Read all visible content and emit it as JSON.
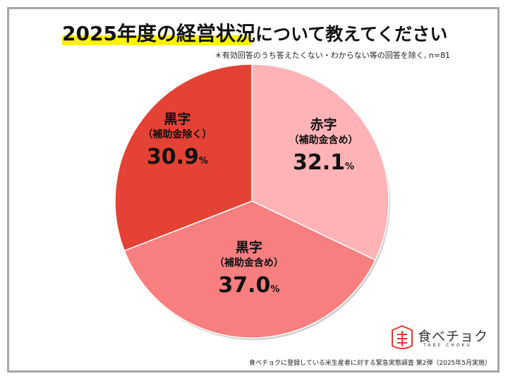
{
  "title": {
    "main": "2025年度の経営状況",
    "sub": "について教えてください"
  },
  "note": "＊有効回答のうち答えたくない・わからない等の回答を除く, n=81",
  "colors": {
    "red_profit_excl": "#e34234",
    "red_profit_incl": "#f77f7f",
    "deficit_incl": "#ffb3b6",
    "highlight": "#fff200",
    "frame": "#a6a6a6"
  },
  "chart_data": {
    "type": "pie",
    "title": "2025年度の経営状況について教えてください",
    "n": 81,
    "start_angle_deg": 0,
    "direction": "clockwise",
    "slices": [
      {
        "label": "赤字",
        "sublabel": "（補助金含め）",
        "value": 32.1,
        "display": "32.1",
        "unit": "%",
        "color": "#ffb3b6"
      },
      {
        "label": "黒字",
        "sublabel": "（補助金含め）",
        "value": 37.0,
        "display": "37.0",
        "unit": "%",
        "color": "#f77f7f"
      },
      {
        "label": "黒字",
        "sublabel": "（補助金除く）",
        "value": 30.9,
        "display": "30.9",
        "unit": "%",
        "color": "#e34234"
      }
    ]
  },
  "logo": {
    "text": "食べチョク",
    "sub": "TABE CHOKU",
    "icon": "tabechoku-logo-icon"
  },
  "source": "食べチョクに登録している米生産者に対する緊急実態調査 第2弾（2025年5月実施）"
}
